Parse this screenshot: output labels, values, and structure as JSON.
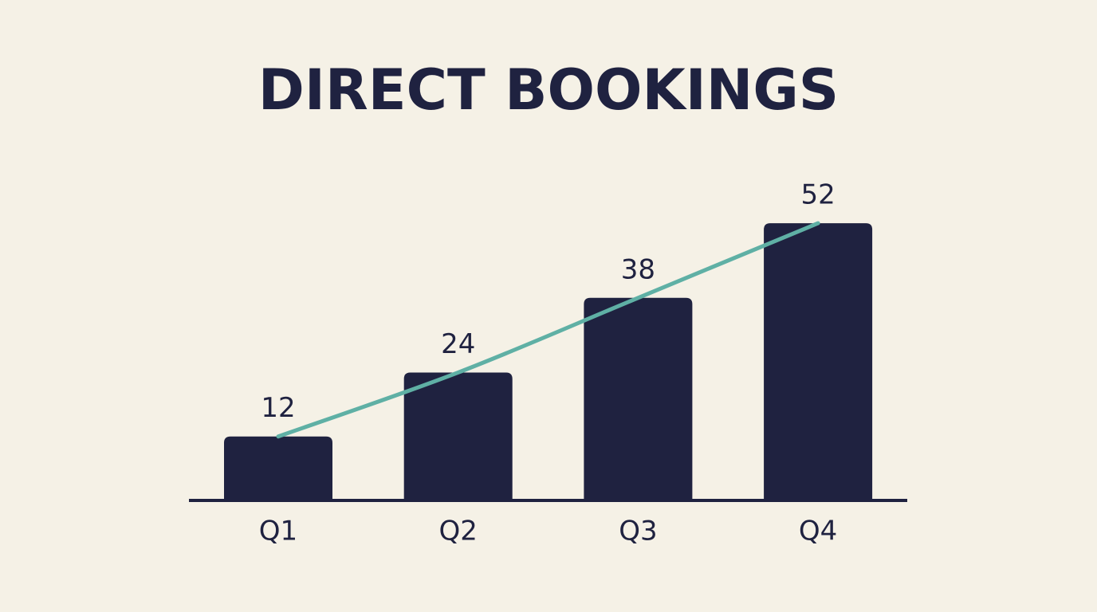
{
  "chart_data": {
    "type": "bar",
    "title": "DIRECT BOOKINGS",
    "categories": [
      "Q1",
      "Q2",
      "Q3",
      "Q4"
    ],
    "values": [
      12,
      24,
      38,
      52
    ],
    "color": "#1f2240",
    "trend_line": true,
    "trend_color": "#5fb0a5"
  }
}
